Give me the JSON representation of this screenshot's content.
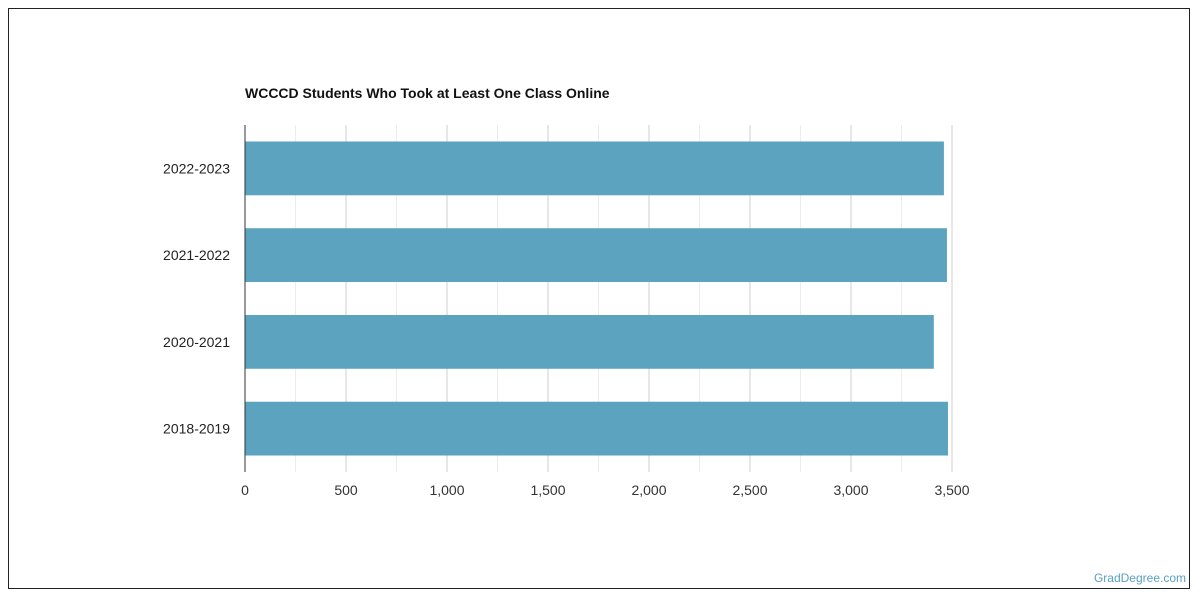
{
  "chart_data": {
    "type": "bar",
    "orientation": "horizontal",
    "title": "WCCCD Students Who Took at Least One Class Online",
    "xlabel": "",
    "ylabel": "",
    "categories": [
      "2022-2023",
      "2021-2022",
      "2020-2021",
      "2018-2019"
    ],
    "values": [
      3460,
      3475,
      3410,
      3480
    ],
    "xlim": [
      0,
      3500
    ],
    "ticks": [
      0,
      500,
      1000,
      1500,
      2000,
      2500,
      3000,
      3500
    ],
    "tick_labels": [
      "0",
      "500",
      "1,000",
      "1,500",
      "2,000",
      "2,500",
      "3,000",
      "3,500"
    ],
    "grid": true,
    "bar_color": "#5ba3be"
  },
  "watermark": "GradDegree.com"
}
